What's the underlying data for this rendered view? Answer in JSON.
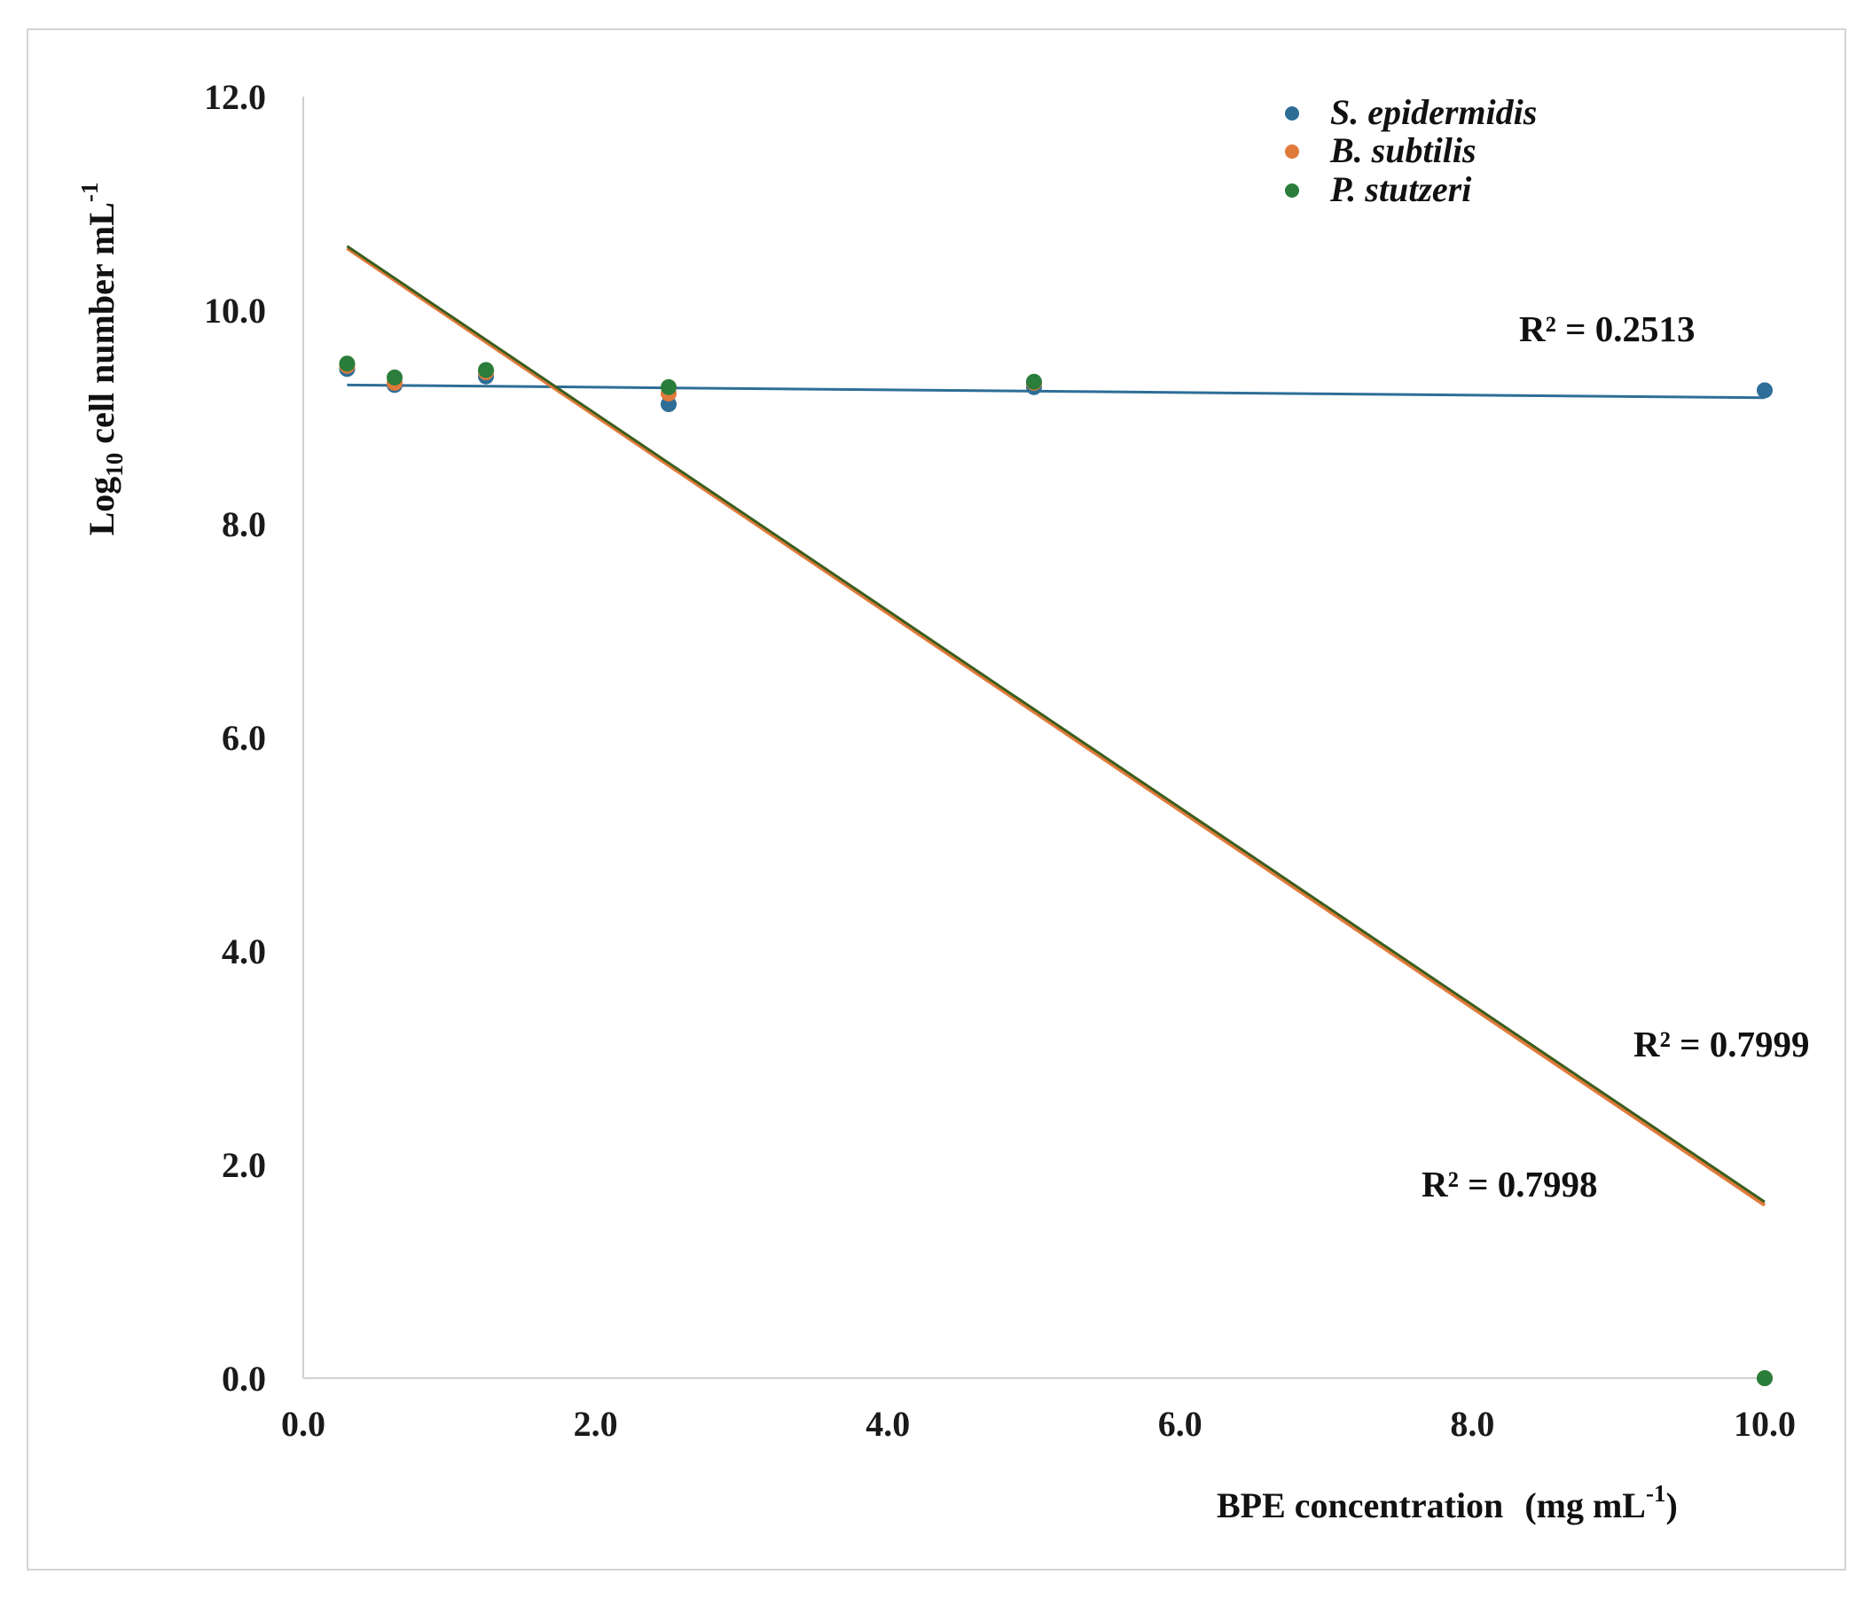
{
  "chart_data": {
    "type": "scatter",
    "xlabel_main": "BPE concentration",
    "xlabel_unit_prefix": "(mg mL",
    "xlabel_unit_exp": "-1",
    "xlabel_unit_suffix": ")",
    "ylabel_prefix": "Log",
    "ylabel_sub": "10",
    "ylabel_mid": " cell number  mL",
    "ylabel_sup": "-1",
    "xlim": [
      0,
      10
    ],
    "ylim": [
      0,
      12
    ],
    "x_ticks": [
      "0.0",
      "2.0",
      "4.0",
      "6.0",
      "8.0",
      "10.0"
    ],
    "y_ticks": [
      "0.0",
      "2.0",
      "4.0",
      "6.0",
      "8.0",
      "10.0",
      "12.0"
    ],
    "grid": false,
    "legend_position": "top-right",
    "series": [
      {
        "name": "S. epidermidis",
        "color": "#2e6e96",
        "x": [
          0.3,
          0.625,
          1.25,
          2.5,
          5,
          10
        ],
        "y": [
          9.45,
          9.3,
          9.38,
          9.12,
          9.28,
          9.25
        ],
        "trendline": {
          "x": [
            0.3,
            10
          ],
          "y": [
            9.3,
            9.18
          ]
        },
        "r2_label": "R² = 0.2513"
      },
      {
        "name": "B. subtilis",
        "color": "#e07a3a",
        "x": [
          0.3,
          0.625,
          1.25,
          2.5,
          5,
          10
        ],
        "y": [
          9.48,
          9.32,
          9.42,
          9.22,
          9.32,
          0.0
        ],
        "trendline": {
          "x": [
            0.3,
            10
          ],
          "y": [
            10.58,
            1.62
          ]
        },
        "r2_label": "R² = 0.7998"
      },
      {
        "name": "P. stutzeri",
        "color": "#2a7d3a",
        "x": [
          0.3,
          0.625,
          1.25,
          2.5,
          5,
          10
        ],
        "y": [
          9.5,
          9.37,
          9.44,
          9.28,
          9.33,
          0.0
        ],
        "trendline": {
          "x": [
            0.3,
            10
          ],
          "y": [
            10.6,
            1.65
          ]
        },
        "r2_label": "R² = 0.7999"
      }
    ]
  },
  "colors": {
    "axis": "#d0d0d0",
    "pstutzeri_line": "#3b5e1e"
  }
}
